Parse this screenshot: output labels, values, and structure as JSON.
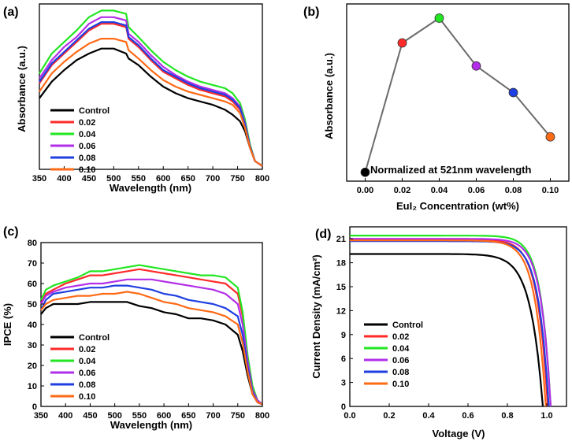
{
  "colors": {
    "Control": "#000000",
    "0.02": "#ff2a2a",
    "0.04": "#22e622",
    "0.06": "#b22ee8",
    "0.08": "#1f3fe0",
    "0.10": "#ff6a16",
    "axis": "#000000",
    "connector": "#6b6b6b"
  },
  "chart_data": [
    {
      "id": "a",
      "panel_label": "(a)",
      "type": "line",
      "title": "",
      "xlabel": "Wavelength (nm)",
      "ylabel": "Absorbance (a.u.)",
      "xlim": [
        350,
        800
      ],
      "ylim": [
        0,
        1
      ],
      "xticks": [
        350,
        400,
        450,
        500,
        550,
        600,
        650,
        700,
        750,
        800
      ],
      "yticks": [],
      "x": [
        350,
        375,
        400,
        425,
        450,
        475,
        500,
        525,
        530,
        550,
        575,
        600,
        625,
        650,
        675,
        700,
        725,
        740,
        755,
        765,
        775,
        785,
        800
      ],
      "series": [
        {
          "name": "Control",
          "values": [
            0.43,
            0.53,
            0.6,
            0.66,
            0.7,
            0.73,
            0.73,
            0.7,
            0.67,
            0.63,
            0.56,
            0.5,
            0.46,
            0.43,
            0.41,
            0.39,
            0.36,
            0.33,
            0.29,
            0.23,
            0.13,
            0.05,
            0.02
          ]
        },
        {
          "name": "0.02",
          "values": [
            0.52,
            0.63,
            0.7,
            0.77,
            0.84,
            0.88,
            0.88,
            0.86,
            0.79,
            0.74,
            0.66,
            0.59,
            0.55,
            0.51,
            0.48,
            0.46,
            0.44,
            0.41,
            0.36,
            0.27,
            0.14,
            0.05,
            0.02
          ]
        },
        {
          "name": "0.04",
          "values": [
            0.58,
            0.7,
            0.77,
            0.84,
            0.92,
            0.96,
            0.96,
            0.94,
            0.86,
            0.8,
            0.72,
            0.65,
            0.6,
            0.56,
            0.53,
            0.51,
            0.49,
            0.46,
            0.4,
            0.3,
            0.15,
            0.05,
            0.02
          ]
        },
        {
          "name": "0.06",
          "values": [
            0.55,
            0.66,
            0.74,
            0.8,
            0.88,
            0.92,
            0.92,
            0.9,
            0.82,
            0.77,
            0.69,
            0.62,
            0.57,
            0.53,
            0.5,
            0.48,
            0.46,
            0.43,
            0.38,
            0.28,
            0.14,
            0.05,
            0.02
          ]
        },
        {
          "name": "0.08",
          "values": [
            0.53,
            0.64,
            0.71,
            0.78,
            0.85,
            0.89,
            0.89,
            0.87,
            0.8,
            0.75,
            0.67,
            0.6,
            0.56,
            0.52,
            0.49,
            0.47,
            0.45,
            0.42,
            0.37,
            0.27,
            0.14,
            0.05,
            0.02
          ]
        },
        {
          "name": "0.10",
          "values": [
            0.47,
            0.58,
            0.65,
            0.71,
            0.76,
            0.79,
            0.79,
            0.77,
            0.72,
            0.67,
            0.6,
            0.54,
            0.5,
            0.47,
            0.45,
            0.43,
            0.41,
            0.39,
            0.34,
            0.25,
            0.13,
            0.05,
            0.02
          ]
        }
      ],
      "legend_position": "bottom-left"
    },
    {
      "id": "b",
      "panel_label": "(b)",
      "type": "scatter",
      "title": "",
      "xlabel": "EuI₂ Concentration (wt%)",
      "ylabel": "Absorbance (a.u.)",
      "xlim": [
        -0.01,
        0.11
      ],
      "ylim": [
        0,
        1
      ],
      "xticks": [
        "0.00",
        "0.02",
        "0.04",
        "0.06",
        "0.08",
        "0.10"
      ],
      "yticks": [],
      "points": [
        {
          "x": 0.0,
          "y": 0.05,
          "color": "#000000"
        },
        {
          "x": 0.02,
          "y": 0.78,
          "color": "#ff2a2a"
        },
        {
          "x": 0.04,
          "y": 0.92,
          "color": "#22e622"
        },
        {
          "x": 0.06,
          "y": 0.65,
          "color": "#b22ee8"
        },
        {
          "x": 0.08,
          "y": 0.5,
          "color": "#1f3fe0"
        },
        {
          "x": 0.1,
          "y": 0.25,
          "color": "#ff6a16"
        }
      ],
      "annotation": "Normalized at 521nm wavelength"
    },
    {
      "id": "c",
      "panel_label": "(c)",
      "type": "line",
      "title": "",
      "xlabel": "Wavelength (nm)",
      "ylabel": "IPCE (%)",
      "xlim": [
        350,
        800
      ],
      "ylim": [
        0,
        80
      ],
      "xticks": [
        350,
        400,
        450,
        500,
        550,
        600,
        650,
        700,
        750,
        800
      ],
      "yticks": [
        0,
        10,
        20,
        30,
        40,
        50,
        60,
        70,
        80
      ],
      "x": [
        350,
        360,
        375,
        400,
        425,
        450,
        475,
        500,
        525,
        550,
        575,
        600,
        625,
        650,
        675,
        700,
        725,
        750,
        760,
        770,
        780,
        790,
        800
      ],
      "series": [
        {
          "name": "Control",
          "values": [
            45,
            48,
            50,
            50,
            50,
            51,
            51,
            51,
            51,
            49,
            48,
            46,
            45,
            43,
            43,
            42,
            40,
            35,
            27,
            15,
            6,
            2,
            1
          ]
        },
        {
          "name": "0.02",
          "values": [
            50,
            55,
            57,
            60,
            62,
            64,
            64,
            65,
            66,
            67,
            66,
            65,
            64,
            63,
            62,
            61,
            60,
            55,
            44,
            24,
            9,
            3,
            1
          ]
        },
        {
          "name": "0.04",
          "values": [
            52,
            57,
            59,
            61,
            63,
            66,
            66,
            67,
            68,
            69,
            68,
            67,
            66,
            65,
            64,
            64,
            63,
            58,
            46,
            25,
            10,
            3,
            1
          ]
        },
        {
          "name": "0.06",
          "values": [
            50,
            54,
            56,
            58,
            59,
            60,
            60,
            61,
            62,
            62,
            62,
            61,
            60,
            59,
            58,
            57,
            55,
            50,
            40,
            22,
            8,
            3,
            1
          ]
        },
        {
          "name": "0.08",
          "values": [
            47,
            52,
            55,
            56,
            57,
            58,
            58,
            59,
            59,
            58,
            57,
            55,
            54,
            52,
            51,
            50,
            48,
            44,
            35,
            19,
            7,
            2,
            1
          ]
        },
        {
          "name": "0.10",
          "values": [
            47,
            50,
            52,
            53,
            54,
            54,
            55,
            55,
            56,
            55,
            53,
            51,
            50,
            48,
            47,
            46,
            44,
            40,
            31,
            17,
            6,
            2,
            1
          ]
        }
      ],
      "legend_position": "bottom-left"
    },
    {
      "id": "d",
      "panel_label": "(d)",
      "type": "line",
      "title": "",
      "xlabel": "Voltage (V)",
      "ylabel": "Current Density (mA/cm²)",
      "xlim": [
        0,
        1.1
      ],
      "ylim": [
        0,
        22.5
      ],
      "xticks": [
        "0.0",
        "0.2",
        "0.4",
        "0.6",
        "0.8",
        "1.0"
      ],
      "yticks": [
        0,
        3,
        6,
        9,
        12,
        15,
        18,
        21
      ],
      "series": [
        {
          "name": "Control",
          "jsc": 19.1,
          "voc": 0.98,
          "n": 0.062
        },
        {
          "name": "0.02",
          "jsc": 20.9,
          "voc": 1.005,
          "n": 0.052
        },
        {
          "name": "0.04",
          "jsc": 21.4,
          "voc": 1.02,
          "n": 0.05
        },
        {
          "name": "0.06",
          "jsc": 21.0,
          "voc": 1.02,
          "n": 0.05
        },
        {
          "name": "0.08",
          "jsc": 20.7,
          "voc": 1.01,
          "n": 0.052
        },
        {
          "name": "0.10",
          "jsc": 20.8,
          "voc": 0.995,
          "n": 0.054
        }
      ],
      "legend_position": "bottom-left"
    }
  ]
}
